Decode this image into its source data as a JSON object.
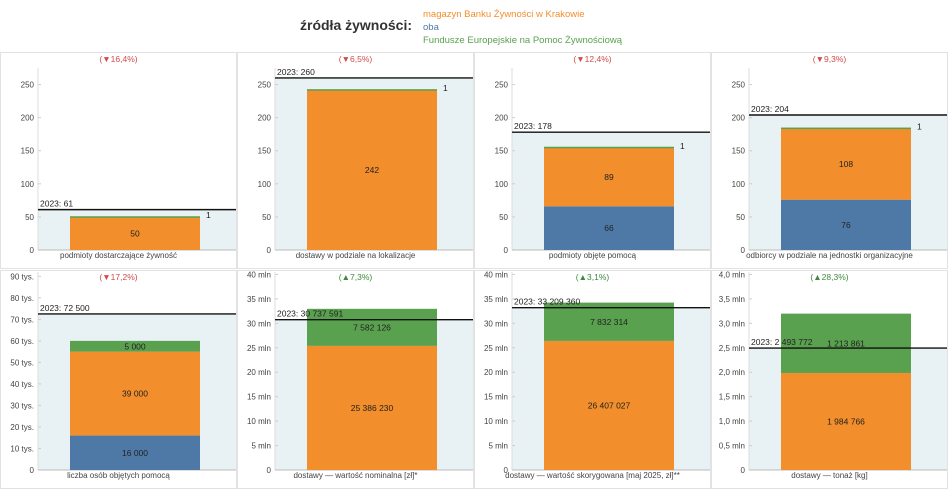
{
  "legend": {
    "title": "źródła żywności:",
    "items": [
      {
        "label": "magazyn Banku Żywności w Krakowie",
        "color": "#f28e2b"
      },
      {
        "label": "oba",
        "color": "#4e79a7"
      },
      {
        "label": "Fundusze Europejskie na Pomoc Żywnościową",
        "color": "#59a14f"
      }
    ]
  },
  "chart_data": [
    {
      "type": "bar",
      "xlabel": "podmioty dostarczające żywność",
      "change": "(▼16,4%)",
      "change_dir": "down",
      "ylim": [
        0,
        275
      ],
      "yticks": [
        0,
        50,
        100,
        150,
        200,
        250
      ],
      "ytick_labels": [
        "0",
        "50",
        "100",
        "150",
        "200",
        "250"
      ],
      "ref_value": 61,
      "ref_label": "2023: 61",
      "segments": [
        {
          "source": "oba",
          "value": 0,
          "label": ""
        },
        {
          "source": "magazyn Banku Żywności w Krakowie",
          "value": 50,
          "label": "50"
        },
        {
          "source": "Fundusze Europejskie na Pomoc Żywnościową",
          "value": 1,
          "label": "1"
        }
      ]
    },
    {
      "type": "bar",
      "xlabel": "dostawy w podziale na lokalizacje",
      "change": "(▼6,5%)",
      "change_dir": "down",
      "ylim": [
        0,
        275
      ],
      "yticks": [
        0,
        50,
        100,
        150,
        200,
        250
      ],
      "ytick_labels": [
        "0",
        "50",
        "100",
        "150",
        "200",
        "250"
      ],
      "ref_value": 260,
      "ref_label": "2023: 260",
      "segments": [
        {
          "source": "oba",
          "value": 0,
          "label": ""
        },
        {
          "source": "magazyn Banku Żywności w Krakowie",
          "value": 242,
          "label": "242"
        },
        {
          "source": "Fundusze Europejskie na Pomoc Żywnościową",
          "value": 1,
          "label": "1"
        }
      ]
    },
    {
      "type": "bar",
      "xlabel": "podmioty objęte pomocą",
      "change": "(▼12,4%)",
      "change_dir": "down",
      "ylim": [
        0,
        275
      ],
      "yticks": [
        0,
        50,
        100,
        150,
        200,
        250
      ],
      "ytick_labels": [
        "0",
        "50",
        "100",
        "150",
        "200",
        "250"
      ],
      "ref_value": 178,
      "ref_label": "2023: 178",
      "segments": [
        {
          "source": "oba",
          "value": 66,
          "label": "66"
        },
        {
          "source": "magazyn Banku Żywności w Krakowie",
          "value": 89,
          "label": "89"
        },
        {
          "source": "Fundusze Europejskie na Pomoc Żywnościową",
          "value": 1,
          "label": "1"
        }
      ]
    },
    {
      "type": "bar",
      "xlabel": "odbiorcy w podziale na jednostki organizacyjne",
      "change": "(▼9,3%)",
      "change_dir": "down",
      "ylim": [
        0,
        275
      ],
      "yticks": [
        0,
        50,
        100,
        150,
        200,
        250
      ],
      "ytick_labels": [
        "0",
        "50",
        "100",
        "150",
        "200",
        "250"
      ],
      "ref_value": 204,
      "ref_label": "2023: 204",
      "segments": [
        {
          "source": "oba",
          "value": 76,
          "label": "76"
        },
        {
          "source": "magazyn Banku Żywności w Krakowie",
          "value": 108,
          "label": "108"
        },
        {
          "source": "Fundusze Europejskie na Pomoc Żywnościową",
          "value": 1,
          "label": "1"
        }
      ]
    },
    {
      "type": "bar",
      "xlabel": "liczba osób objętych pomocą",
      "change": "(▼17,2%)",
      "change_dir": "down",
      "ylim": [
        0,
        92000
      ],
      "yticks": [
        0,
        10000,
        20000,
        30000,
        40000,
        50000,
        60000,
        70000,
        80000,
        90000
      ],
      "ytick_labels": [
        "0",
        "10 tys.",
        "20 tys.",
        "30 tys.",
        "40 tys.",
        "50 tys.",
        "60 tys.",
        "70 tys.",
        "80 tys.",
        "90 tys."
      ],
      "ref_value": 72500,
      "ref_label": "2023: 72 500",
      "segments": [
        {
          "source": "oba",
          "value": 16000,
          "label": "16 000"
        },
        {
          "source": "magazyn Banku Żywności w Krakowie",
          "value": 39000,
          "label": "39 000"
        },
        {
          "source": "Fundusze Europejskie na Pomoc Żywnościową",
          "value": 5000,
          "label": "5 000"
        }
      ]
    },
    {
      "type": "bar",
      "xlabel": "dostawy — wartość nominalna [zł]*",
      "change": "(▲7,3%)",
      "change_dir": "up",
      "ylim": [
        0,
        40500000
      ],
      "yticks": [
        0,
        5000000,
        10000000,
        15000000,
        20000000,
        25000000,
        30000000,
        35000000,
        40000000
      ],
      "ytick_labels": [
        "0",
        "5 mln",
        "10 mln",
        "15 mln",
        "20 mln",
        "25 mln",
        "30 mln",
        "35 mln",
        "40 mln"
      ],
      "ref_value": 30737591,
      "ref_label": "2023: 30 737 591",
      "segments": [
        {
          "source": "oba",
          "value": 0,
          "label": ""
        },
        {
          "source": "magazyn Banku Żywności w Krakowie",
          "value": 25386230,
          "label": "25 386 230"
        },
        {
          "source": "Fundusze Europejskie na Pomoc Żywnościową",
          "value": 7582126,
          "label": "7 582 126"
        }
      ]
    },
    {
      "type": "bar",
      "xlabel": "dostawy — wartość skorygowana [maj 2025, zł]**",
      "change": "(▲3,1%)",
      "change_dir": "up",
      "ylim": [
        0,
        40500000
      ],
      "yticks": [
        0,
        5000000,
        10000000,
        15000000,
        20000000,
        25000000,
        30000000,
        35000000,
        40000000
      ],
      "ytick_labels": [
        "0",
        "5 mln",
        "10 mln",
        "15 mln",
        "20 mln",
        "25 mln",
        "30 mln",
        "35 mln",
        "40 mln"
      ],
      "ref_value": 33209360,
      "ref_label": "2023: 33 209 360",
      "segments": [
        {
          "source": "oba",
          "value": 0,
          "label": ""
        },
        {
          "source": "magazyn Banku Żywności w Krakowie",
          "value": 26407027,
          "label": "26 407 027"
        },
        {
          "source": "Fundusze Europejskie na Pomoc Żywnościową",
          "value": 7832314,
          "label": "7 832 314"
        }
      ]
    },
    {
      "type": "bar",
      "xlabel": "dostawy — tonaż [kg]",
      "change": "(▲28,3%)",
      "change_dir": "up",
      "ylim": [
        0,
        4050000
      ],
      "yticks": [
        0,
        500000,
        1000000,
        1500000,
        2000000,
        2500000,
        3000000,
        3500000,
        4000000
      ],
      "ytick_labels": [
        "0",
        "0,5 mln",
        "1,0 mln",
        "1,5 mln",
        "2,0 mln",
        "2,5 mln",
        "3,0 mln",
        "3,5 mln",
        "4,0 mln"
      ],
      "ref_value": 2493772,
      "ref_label": "2023: 2 493 772",
      "segments": [
        {
          "source": "oba",
          "value": 0,
          "label": ""
        },
        {
          "source": "magazyn Banku Żywności w Krakowie",
          "value": 1984766,
          "label": "1 984 766"
        },
        {
          "source": "Fundusze Europejskie na Pomoc Żywnościową",
          "value": 1213861,
          "label": "1 213 861"
        }
      ]
    }
  ],
  "colors": {
    "oba": "#4e79a7",
    "magazyn": "#f28e2b",
    "fepz": "#59a14f",
    "down": "#d04a4a",
    "up": "#3d8a3d",
    "band": "#e8f2f4"
  }
}
